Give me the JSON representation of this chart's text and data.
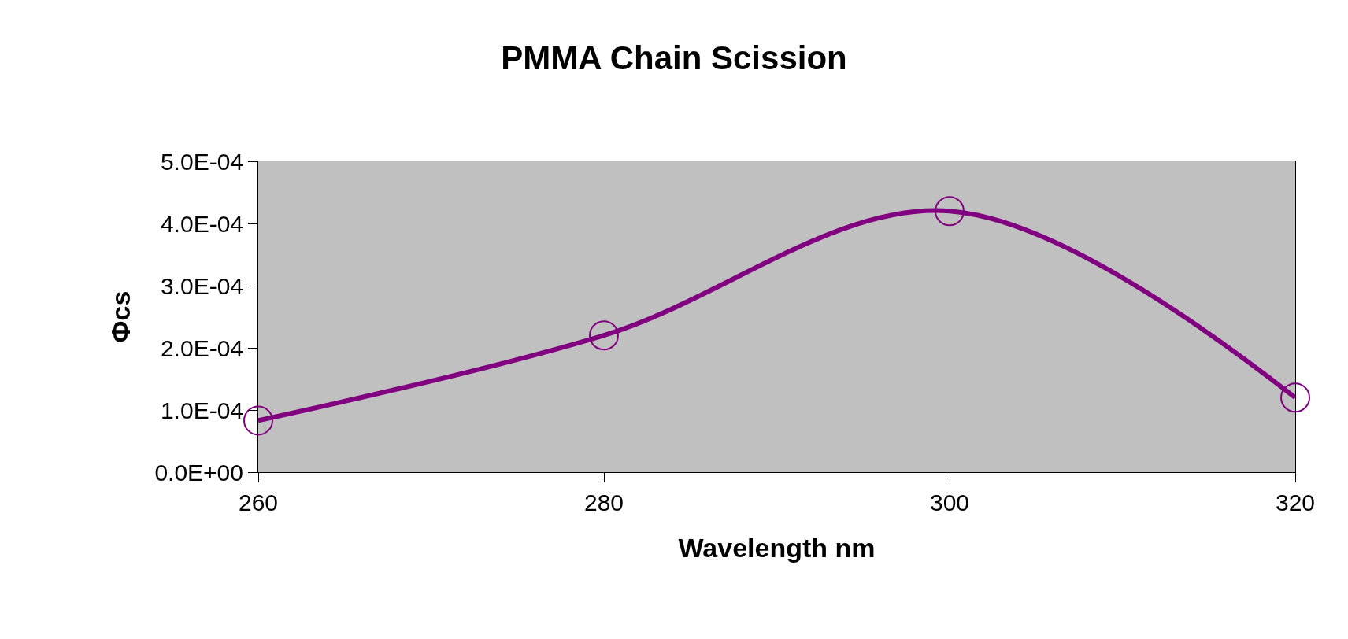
{
  "chart_data": {
    "type": "line",
    "title": "PMMA Chain Scission",
    "xlabel": "Wavelength nm",
    "ylabel": "Φcs",
    "x": [
      260,
      280,
      300,
      320
    ],
    "series": [
      {
        "color": "#800080",
        "values": [
          8.3e-05,
          0.00022,
          0.00042,
          0.00012
        ]
      }
    ],
    "xlim": [
      260,
      320
    ],
    "xticks": [
      260,
      280,
      300,
      320
    ],
    "ylim": [
      0,
      0.0005
    ],
    "yticks": [
      {
        "value": 0,
        "label": "0.0E+00"
      },
      {
        "value": 0.0001,
        "label": "1.0E-04"
      },
      {
        "value": 0.0002,
        "label": "2.0E-04"
      },
      {
        "value": 0.0003,
        "label": "3.0E-04"
      },
      {
        "value": 0.0004,
        "label": "4.0E-04"
      },
      {
        "value": 0.0005,
        "label": "5.0E-04"
      }
    ],
    "grid": false,
    "legend": false,
    "marker": "circle",
    "line_style": "solid"
  }
}
